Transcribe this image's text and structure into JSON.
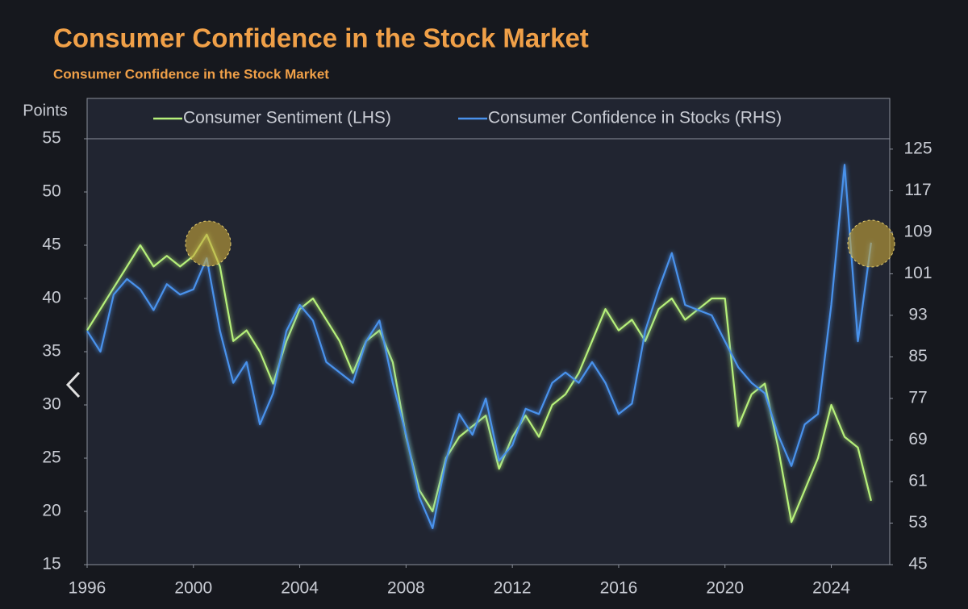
{
  "chart_data": {
    "type": "line",
    "title": "Consumer Confidence in the Stock Market",
    "subtitle": "Consumer Confidence in the Stock Market",
    "y_label": "Points",
    "legend": "top",
    "x": [
      1996,
      1996.5,
      1997,
      1997.5,
      1998,
      1998.5,
      1999,
      1999.5,
      2000,
      2000.5,
      2001,
      2001.5,
      2002,
      2002.5,
      2003,
      2003.5,
      2004,
      2004.5,
      2005,
      2005.5,
      2006,
      2006.5,
      2007,
      2007.5,
      2008,
      2008.5,
      2009,
      2009.5,
      2010,
      2010.5,
      2011,
      2011.5,
      2012,
      2012.5,
      2013,
      2013.5,
      2014,
      2014.5,
      2015,
      2015.5,
      2016,
      2016.5,
      2017,
      2017.5,
      2018,
      2018.5,
      2019,
      2019.5,
      2020,
      2020.5,
      2021,
      2021.5,
      2022,
      2022.5,
      2023,
      2023.5,
      2024,
      2024.5,
      2025,
      2025.5
    ],
    "xlim": [
      1996,
      2026.2
    ],
    "xticks": [
      1996,
      2000,
      2004,
      2008,
      2012,
      2016,
      2020,
      2024
    ],
    "ylim": [
      15,
      55
    ],
    "yticks": [
      15,
      20,
      25,
      30,
      35,
      40,
      45,
      50,
      55
    ],
    "y2lim": [
      45,
      127
    ],
    "y2ticks": [
      45,
      53,
      61,
      69,
      77,
      85,
      93,
      101,
      109,
      117,
      125
    ],
    "series": [
      {
        "name": "Consumer Sentiment (LHS)",
        "color": "#b6f07a",
        "values": [
          37,
          39,
          41,
          43,
          45,
          43,
          44,
          43,
          44,
          46,
          43,
          36,
          37,
          35,
          32,
          36,
          39,
          40,
          38,
          36,
          33,
          36,
          37,
          34,
          27,
          22,
          20,
          25,
          27,
          28,
          29,
          24,
          27,
          29,
          27,
          30,
          31,
          33,
          36,
          39,
          37,
          38,
          36,
          39,
          40,
          38,
          39,
          40,
          40,
          28,
          31,
          32,
          26,
          19,
          22,
          25,
          30,
          27,
          26,
          21
        ]
      },
      {
        "name": "Consumer Confidence in Stocks (RHS)",
        "color": "#4a92ec",
        "axis": "y2",
        "values": [
          90,
          86,
          97,
          100,
          98,
          94,
          99,
          97,
          98,
          104,
          90,
          80,
          84,
          72,
          78,
          90,
          95,
          92,
          84,
          82,
          80,
          88,
          92,
          80,
          70,
          58,
          52,
          65,
          74,
          70,
          77,
          65,
          68,
          75,
          74,
          80,
          82,
          80,
          84,
          80,
          74,
          76,
          90,
          98,
          105,
          95,
          94,
          93,
          88,
          83,
          80,
          78,
          70,
          64,
          72,
          74,
          95,
          122,
          88,
          107
        ]
      }
    ]
  }
}
